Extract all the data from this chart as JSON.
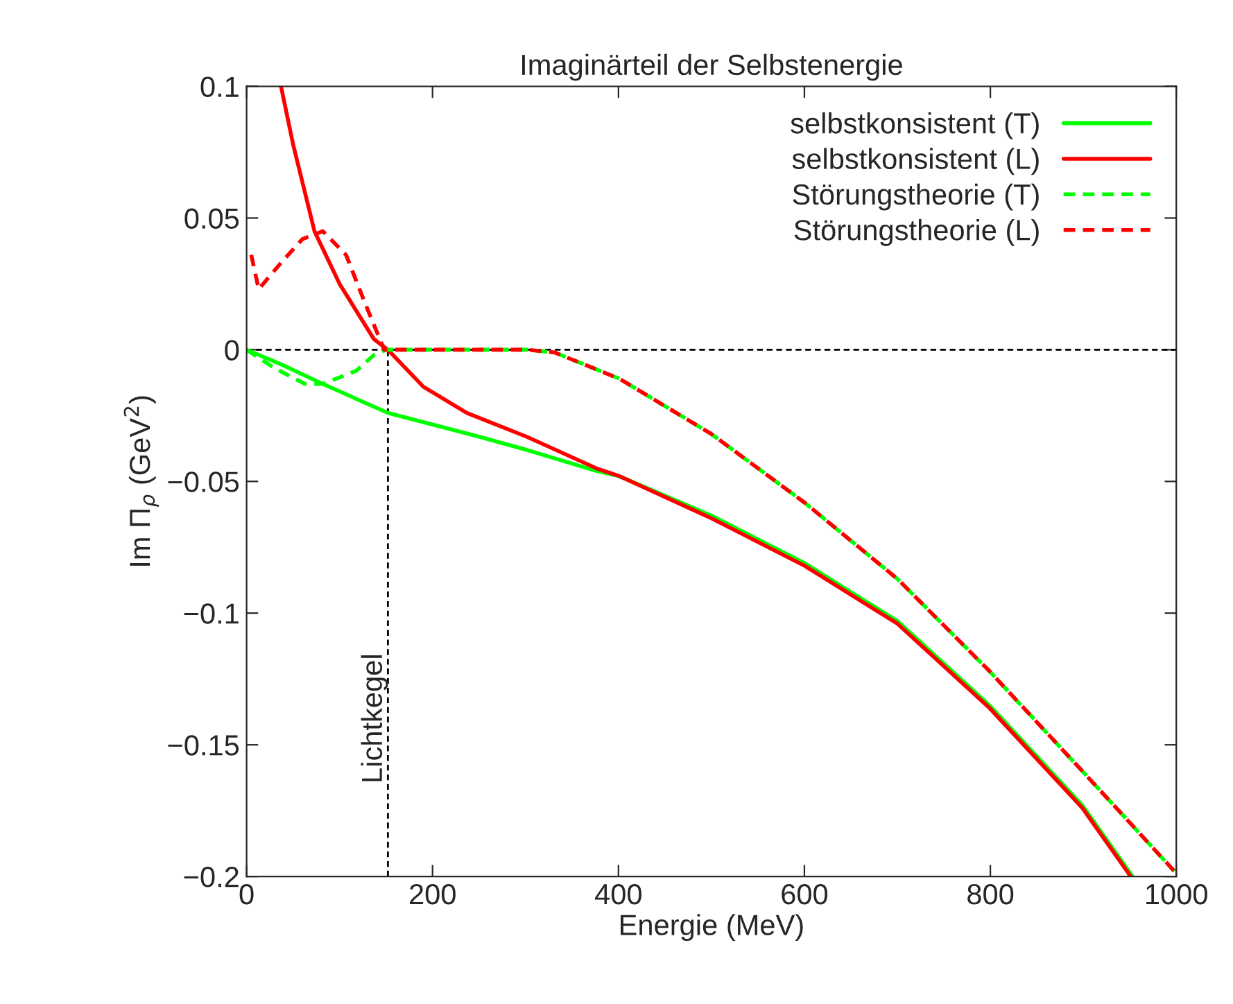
{
  "chart_data": {
    "type": "line",
    "title": "Imaginärteil der Selbstenergie",
    "xlabel": "Energie (MeV)",
    "ylabel": "Im Π$_{ρ}$ (GeV$^{2}$)",
    "xlim": [
      0,
      1000
    ],
    "xticks": [
      0,
      200,
      400,
      600,
      800,
      1000
    ],
    "ylim": [
      -0.2,
      0.1
    ],
    "yticks": [
      {
        "value": -0.2,
        "label": "−0.2"
      },
      {
        "value": -0.15,
        "label": "−0.15"
      },
      {
        "value": -0.1,
        "label": "−0.1"
      },
      {
        "value": -0.05,
        "label": "−0.05"
      },
      0,
      0.05,
      0.1
    ],
    "legend": "top right",
    "grid": false,
    "series": [
      {
        "name": "selbstkonsistent (T)",
        "color": "#00ff00",
        "line_style": "solid",
        "x": [
          0,
          40,
          82,
          152,
          250,
          301,
          376,
          401,
          500,
          600,
          700,
          799,
          899,
          953
        ],
        "values": [
          0,
          -0.006,
          -0.013,
          -0.024,
          -0.033,
          -0.038,
          -0.046,
          -0.048,
          -0.063,
          -0.081,
          -0.103,
          -0.135,
          -0.173,
          -0.2
        ]
      },
      {
        "name": "selbstkonsistent (L)",
        "color": "#ff0000",
        "line_style": "solid",
        "x": [
          37,
          50,
          73,
          100,
          137,
          152,
          190,
          237,
          301,
          376,
          401,
          500,
          600,
          700,
          799,
          899,
          951
        ],
        "values": [
          0.1,
          0.078,
          0.045,
          0.025,
          0.004,
          0,
          -0.014,
          -0.024,
          -0.033,
          -0.045,
          -0.048,
          -0.064,
          -0.082,
          -0.104,
          -0.136,
          -0.174,
          -0.2
        ]
      },
      {
        "name": "Störungstheorie (T)",
        "color": "#00ff00",
        "line_style": "dashed",
        "x": [
          0,
          30,
          63,
          82,
          118,
          137,
          150,
          200,
          301,
          331,
          401,
          500,
          600,
          700,
          799,
          899,
          998
        ],
        "values": [
          0,
          -0.007,
          -0.013,
          -0.013,
          -0.008,
          -0.002,
          0,
          0,
          0,
          -0.001,
          -0.011,
          -0.032,
          -0.058,
          -0.087,
          -0.122,
          -0.16,
          -0.198
        ]
      },
      {
        "name": "Störungstheorie (L)",
        "color": "#ff0000",
        "line_style": "dashed",
        "x": [
          5,
          13,
          37,
          60,
          82,
          107,
          127,
          148,
          200,
          301,
          331,
          401,
          500,
          600,
          700,
          799,
          899,
          998
        ],
        "values": [
          0.036,
          0.023,
          0.033,
          0.042,
          0.045,
          0.036,
          0.018,
          0,
          0,
          0,
          -0.001,
          -0.011,
          -0.032,
          -0.058,
          -0.087,
          -0.122,
          -0.16,
          -0.198
        ]
      }
    ],
    "ref_lines": [
      {
        "axis": "y",
        "value": 0,
        "line_style": "dashed",
        "color": "#000000"
      },
      {
        "axis": "x",
        "value": 152,
        "label": "Lichtkegel",
        "line_style": "dashed",
        "color": "#000000"
      }
    ]
  }
}
